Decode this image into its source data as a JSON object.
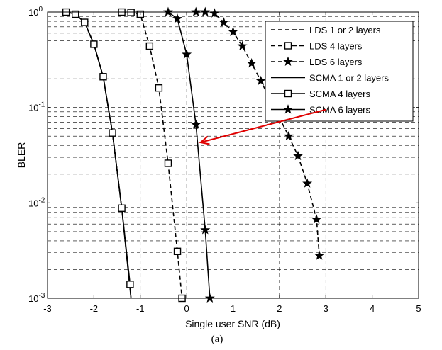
{
  "chart_data": {
    "type": "line",
    "xlabel": "Single user SNR (dB)",
    "ylabel": "BLER",
    "caption": "(a)",
    "xlim": [
      -3,
      5
    ],
    "ylim": [
      0.001,
      1
    ],
    "yscale": "log",
    "grid": true,
    "x_ticks": [
      "-3",
      "-2",
      "-1",
      "0",
      "1",
      "2",
      "3",
      "4",
      "5"
    ],
    "y_ticks": [
      {
        "base": "10",
        "exp": "-3"
      },
      {
        "base": "10",
        "exp": "-2"
      },
      {
        "base": "10",
        "exp": "-1"
      },
      {
        "base": "10",
        "exp": "0"
      }
    ],
    "legend_position": "top-right",
    "series": [
      {
        "name": "LDS 1 or 2 layers",
        "style": "dashed",
        "marker": "none",
        "x": [
          -2.6,
          -2.4,
          -2.2,
          -2.0,
          -1.8,
          -1.6,
          -1.4,
          -1.2
        ],
        "y": [
          1.0,
          0.95,
          0.78,
          0.46,
          0.21,
          0.054,
          0.0088,
          0.001
        ]
      },
      {
        "name": "LDS 4 layers",
        "style": "dashed",
        "marker": "square",
        "x": [
          -1.4,
          -1.2,
          -1.0,
          -0.8,
          -0.6,
          -0.4,
          -0.2,
          -0.1
        ],
        "y": [
          1.0,
          0.99,
          0.95,
          0.44,
          0.16,
          0.026,
          0.0031,
          0.001
        ]
      },
      {
        "name": "LDS 6 layers",
        "style": "dashed",
        "marker": "star",
        "x": [
          0.2,
          0.4,
          0.6,
          0.8,
          1.0,
          1.2,
          1.4,
          1.6,
          1.8,
          2.0,
          2.2,
          2.4,
          2.6,
          2.8,
          2.86
        ],
        "y": [
          1.0,
          1.0,
          0.97,
          0.78,
          0.62,
          0.44,
          0.29,
          0.19,
          0.12,
          0.078,
          0.05,
          0.031,
          0.016,
          0.0067,
          0.0028
        ]
      },
      {
        "name": "SCMA 1 or 2 layers",
        "style": "solid",
        "marker": "none",
        "x": [
          -2.4,
          -2.2,
          -2.0,
          -1.8,
          -1.6,
          -1.4,
          -1.2
        ],
        "y": [
          0.95,
          0.78,
          0.46,
          0.21,
          0.054,
          0.0088,
          0.001
        ]
      },
      {
        "name": "SCMA 4 layers",
        "style": "solid",
        "marker": "square",
        "x": [
          -2.6,
          -2.4,
          -2.2,
          -2.0,
          -1.8,
          -1.6,
          -1.4,
          -1.22
        ],
        "y": [
          1.0,
          0.95,
          0.78,
          0.46,
          0.21,
          0.054,
          0.0088,
          0.0014
        ]
      },
      {
        "name": "SCMA 6 layers",
        "style": "solid",
        "marker": "star",
        "x": [
          -0.4,
          -0.2,
          0.0,
          0.2,
          0.4,
          0.5
        ],
        "y": [
          1.0,
          0.85,
          0.36,
          0.066,
          0.0052,
          0.001
        ]
      }
    ],
    "annotation": {
      "type": "arrow",
      "color": "#e00000",
      "from": [
        3.0,
        0.095
      ],
      "to": [
        0.3,
        0.043
      ]
    }
  }
}
